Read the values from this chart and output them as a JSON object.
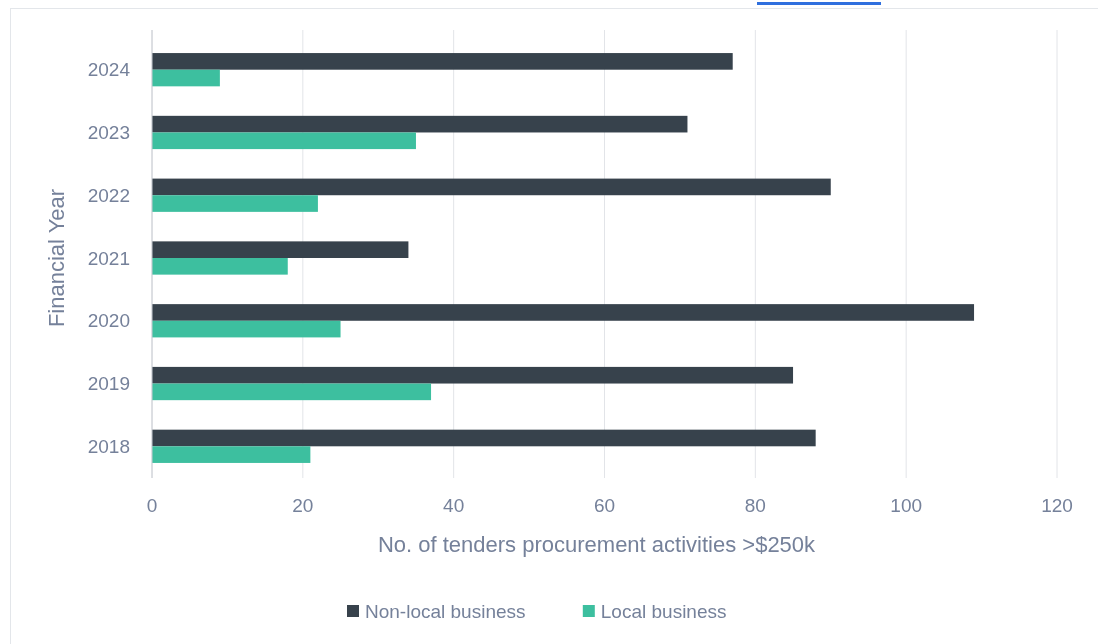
{
  "chart_data": {
    "type": "bar",
    "orientation": "horizontal",
    "xlabel": "No. of tenders procurement activities >$250k",
    "ylabel": "Financial Year",
    "categories": [
      "2024",
      "2023",
      "2022",
      "2021",
      "2020",
      "2019",
      "2018"
    ],
    "series": [
      {
        "name": "Non-local business",
        "color": "#37424c",
        "values": [
          77,
          71,
          90,
          34,
          109,
          85,
          88
        ]
      },
      {
        "name": "Local business",
        "color": "#3dbf9f",
        "values": [
          9,
          35,
          22,
          18,
          25,
          37,
          21
        ]
      }
    ],
    "xlim": [
      0,
      120
    ],
    "xticks": [
      0,
      20,
      40,
      60,
      80,
      100,
      120
    ],
    "grid": "x",
    "legend": "bottom"
  }
}
